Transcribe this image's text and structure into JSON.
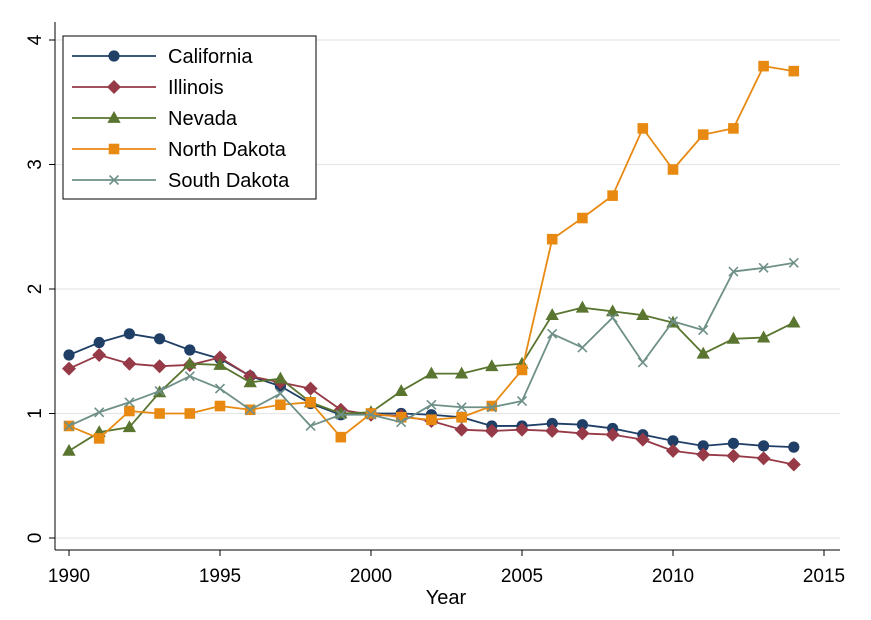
{
  "chart_data": {
    "type": "line",
    "title": "",
    "xlabel": "Year",
    "ylabel": "",
    "xlim": [
      1990,
      2015
    ],
    "ylim": [
      0,
      4
    ],
    "x_ticks": [
      "1990",
      "1995",
      "2000",
      "2005",
      "2010",
      "2015"
    ],
    "y_ticks": [
      "0",
      "1",
      "2",
      "3",
      "4"
    ],
    "grid": true,
    "legend_position": "top-left",
    "x": [
      1990,
      1991,
      1992,
      1993,
      1994,
      1995,
      1996,
      1997,
      1998,
      1999,
      2000,
      2001,
      2002,
      2003,
      2004,
      2005,
      2006,
      2007,
      2008,
      2009,
      2010,
      2011,
      2012,
      2013,
      2014
    ],
    "series": [
      {
        "name": "California",
        "color": "#1f3f66",
        "marker": "circle",
        "values": [
          1.47,
          1.57,
          1.64,
          1.6,
          1.51,
          1.44,
          1.3,
          1.22,
          1.08,
          0.99,
          1.0,
          1.0,
          0.99,
          0.97,
          0.9,
          0.9,
          0.92,
          0.91,
          0.88,
          0.83,
          0.78,
          0.74,
          0.76,
          0.74,
          0.73
        ]
      },
      {
        "name": "Illinois",
        "color": "#953a46",
        "marker": "diamond",
        "values": [
          1.36,
          1.47,
          1.4,
          1.38,
          1.39,
          1.45,
          1.3,
          1.25,
          1.2,
          1.03,
          0.99,
          0.98,
          0.94,
          0.87,
          0.86,
          0.87,
          0.86,
          0.84,
          0.83,
          0.79,
          0.7,
          0.67,
          0.66,
          0.64,
          0.59
        ]
      },
      {
        "name": "Nevada",
        "color": "#5a7530",
        "marker": "triangle",
        "values": [
          0.7,
          0.85,
          0.89,
          1.17,
          1.4,
          1.39,
          1.25,
          1.28,
          1.09,
          1.0,
          1.01,
          1.18,
          1.32,
          1.32,
          1.38,
          1.4,
          1.79,
          1.85,
          1.82,
          1.79,
          1.73,
          1.48,
          1.6,
          1.61,
          1.73
        ]
      },
      {
        "name": "North Dakota",
        "color": "#e88a12",
        "marker": "square",
        "values": [
          0.9,
          0.8,
          1.02,
          1.0,
          1.0,
          1.06,
          1.03,
          1.07,
          1.09,
          0.81,
          1.0,
          0.97,
          0.95,
          0.97,
          1.06,
          1.35,
          2.4,
          2.57,
          2.75,
          3.29,
          2.96,
          3.24,
          3.29,
          3.79,
          3.75
        ]
      },
      {
        "name": "South Dakota",
        "color": "#6f9088",
        "marker": "x",
        "values": [
          0.9,
          1.01,
          1.09,
          1.18,
          1.3,
          1.2,
          1.03,
          1.16,
          0.9,
          0.99,
          0.99,
          0.93,
          1.07,
          1.05,
          1.05,
          1.1,
          1.64,
          1.53,
          1.77,
          1.41,
          1.74,
          1.67,
          2.14,
          2.17,
          2.21
        ]
      }
    ]
  }
}
